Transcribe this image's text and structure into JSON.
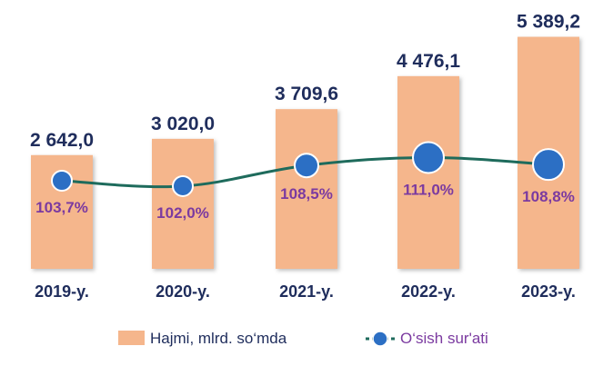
{
  "chart_data": {
    "type": "bar",
    "categories": [
      "2019-y.",
      "2020-y.",
      "2021-y.",
      "2022-y.",
      "2023-y."
    ],
    "series": [
      {
        "name": "Hajmi, mlrd. so‘mda",
        "type": "bar",
        "values": [
          2642.0,
          3020.0,
          3709.6,
          4476.1,
          5389.2
        ],
        "labels": [
          "2 642,0",
          "3 020,0",
          "3 709,6",
          "4 476,1",
          "5 389,2"
        ],
        "color": "#f5b68c"
      },
      {
        "name": "O‘sish sur'ati",
        "type": "line",
        "values": [
          103.7,
          102.0,
          108.5,
          111.0,
          108.8
        ],
        "labels": [
          "103,7%",
          "102,0%",
          "108,5%",
          "111,0%",
          "108,8%"
        ],
        "color": "#1e6b5c",
        "marker_color": "#2c6fc4"
      }
    ],
    "legend": {
      "position": "bottom"
    },
    "grid": false
  },
  "colors": {
    "value_label": "#1f2d5c",
    "percent_label": "#7b3aa0",
    "category_label": "#1f2d5c",
    "legend_bar_text": "#1f2d5c",
    "legend_line_text": "#7b3aa0"
  }
}
